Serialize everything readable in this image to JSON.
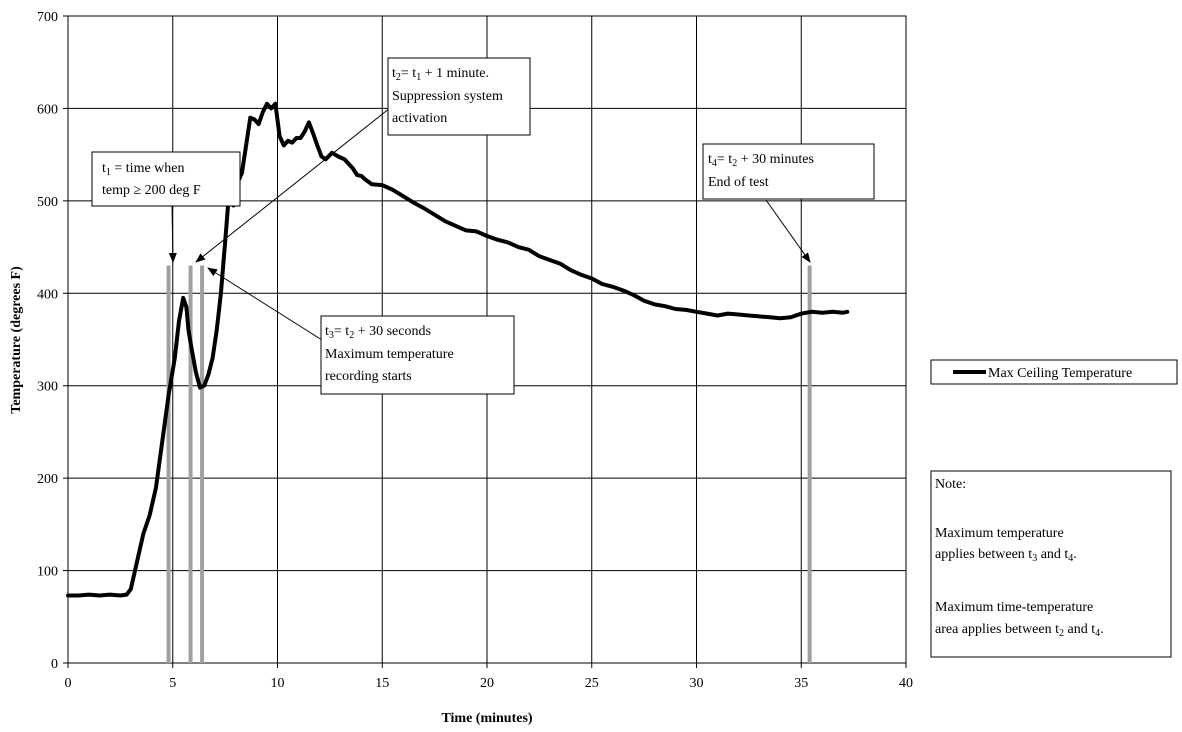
{
  "chart_data": {
    "type": "line",
    "xlabel": "Time (minutes)",
    "ylabel": "Temperature (degrees F)",
    "xlim": [
      0,
      40
    ],
    "ylim": [
      0,
      700
    ],
    "x_ticks": [
      "0",
      "5",
      "10",
      "15",
      "20",
      "25",
      "30",
      "35",
      "40"
    ],
    "y_ticks": [
      "0",
      "100",
      "200",
      "300",
      "400",
      "500",
      "600",
      "700"
    ],
    "grid": true,
    "legend_position": "right",
    "series": [
      {
        "name": "Max Ceiling Temperature",
        "color": "#000000",
        "x": [
          0,
          0.5,
          1,
          1.5,
          2,
          2.5,
          2.8,
          3,
          3.3,
          3.6,
          3.9,
          4.2,
          4.5,
          4.8,
          5.1,
          5.3,
          5.5,
          5.65,
          5.75,
          5.9,
          6.1,
          6.3,
          6.5,
          6.7,
          6.9,
          7.1,
          7.3,
          7.5,
          7.7,
          7.9,
          8.1,
          8.3,
          8.5,
          8.7,
          8.9,
          9.1,
          9.3,
          9.5,
          9.7,
          9.9,
          10.1,
          10.3,
          10.5,
          10.7,
          10.9,
          11.1,
          11.3,
          11.5,
          11.7,
          11.9,
          12.1,
          12.3,
          12.6,
          12.9,
          13.2,
          13.4,
          13.6,
          13.8,
          14.0,
          14.2,
          14.5,
          15,
          15.5,
          16,
          16.5,
          17,
          17.5,
          18,
          18.5,
          19,
          19.5,
          20,
          20.5,
          21,
          21.5,
          22,
          22.5,
          23,
          23.5,
          24,
          24.5,
          25,
          25.5,
          26,
          26.5,
          27,
          27.5,
          28,
          28.5,
          29,
          29.5,
          30,
          30.5,
          31,
          31.5,
          32,
          32.5,
          33,
          33.5,
          34,
          34.5,
          35,
          35.5,
          36,
          36.5,
          37,
          37.2
        ],
        "y": [
          73,
          73,
          74,
          73,
          74,
          73,
          74,
          80,
          110,
          140,
          160,
          190,
          240,
          290,
          330,
          370,
          395,
          385,
          360,
          340,
          315,
          298,
          300,
          312,
          330,
          360,
          400,
          455,
          512,
          495,
          520,
          530,
          560,
          590,
          588,
          583,
          596,
          605,
          600,
          605,
          570,
          560,
          565,
          563,
          568,
          568,
          575,
          585,
          573,
          560,
          548,
          545,
          552,
          548,
          545,
          540,
          535,
          528,
          527,
          523,
          518,
          517,
          512,
          505,
          498,
          492,
          485,
          478,
          473,
          468,
          467,
          462,
          458,
          455,
          450,
          447,
          440,
          436,
          432,
          425,
          420,
          416,
          410,
          407,
          403,
          398,
          392,
          388,
          386,
          383,
          382,
          380,
          378,
          376,
          378,
          377,
          376,
          375,
          374,
          373,
          374,
          378,
          380,
          379,
          380,
          379,
          380
        ]
      }
    ],
    "markers": [
      {
        "name": "t1",
        "x": 4.8,
        "top": 430
      },
      {
        "name": "t2",
        "x": 5.85,
        "top": 430
      },
      {
        "name": "t3",
        "x": 6.4,
        "top": 430
      },
      {
        "name": "t4",
        "x": 35.4,
        "top": 430
      }
    ],
    "marker_color": "#a0a0a0"
  },
  "annotations": {
    "t1_main": "t",
    "t1_sub": "1",
    "t1_rest": " = time when",
    "t1_line2": "temp ≥ 200 deg F",
    "t2_main": "t",
    "t2_sub": "2",
    "t2_mid": "= t",
    "t2_sub2": "1",
    "t2_rest": " + 1 minute.",
    "t2_line2": "Suppression system",
    "t2_line3": "activation",
    "t3_main": "t",
    "t3_sub": "3",
    "t3_mid": "= t",
    "t3_sub2": "2",
    "t3_rest": " + 30 seconds",
    "t3_line2": "Maximum temperature",
    "t3_line3": "recording starts",
    "t4_main": "t",
    "t4_sub": "4",
    "t4_mid": "= t",
    "t4_sub2": "2",
    "t4_rest": " + 30 minutes",
    "t4_line2": "End of test"
  },
  "legend": {
    "label": "Max Ceiling Temperature"
  },
  "note": {
    "title": "Note:",
    "p1_line1": "Maximum temperature",
    "p1_line2_a": "applies between t",
    "p1_line2_sub1": "3",
    "p1_line2_b": " and t",
    "p1_line2_sub2": "4",
    "p1_line2_c": ".",
    "p2_line1": "Maximum time-temperature",
    "p2_line2_a": "area applies between t",
    "p2_line2_sub1": "2",
    "p2_line2_b": " and t",
    "p2_line2_sub2": "4",
    "p2_line2_c": "."
  }
}
